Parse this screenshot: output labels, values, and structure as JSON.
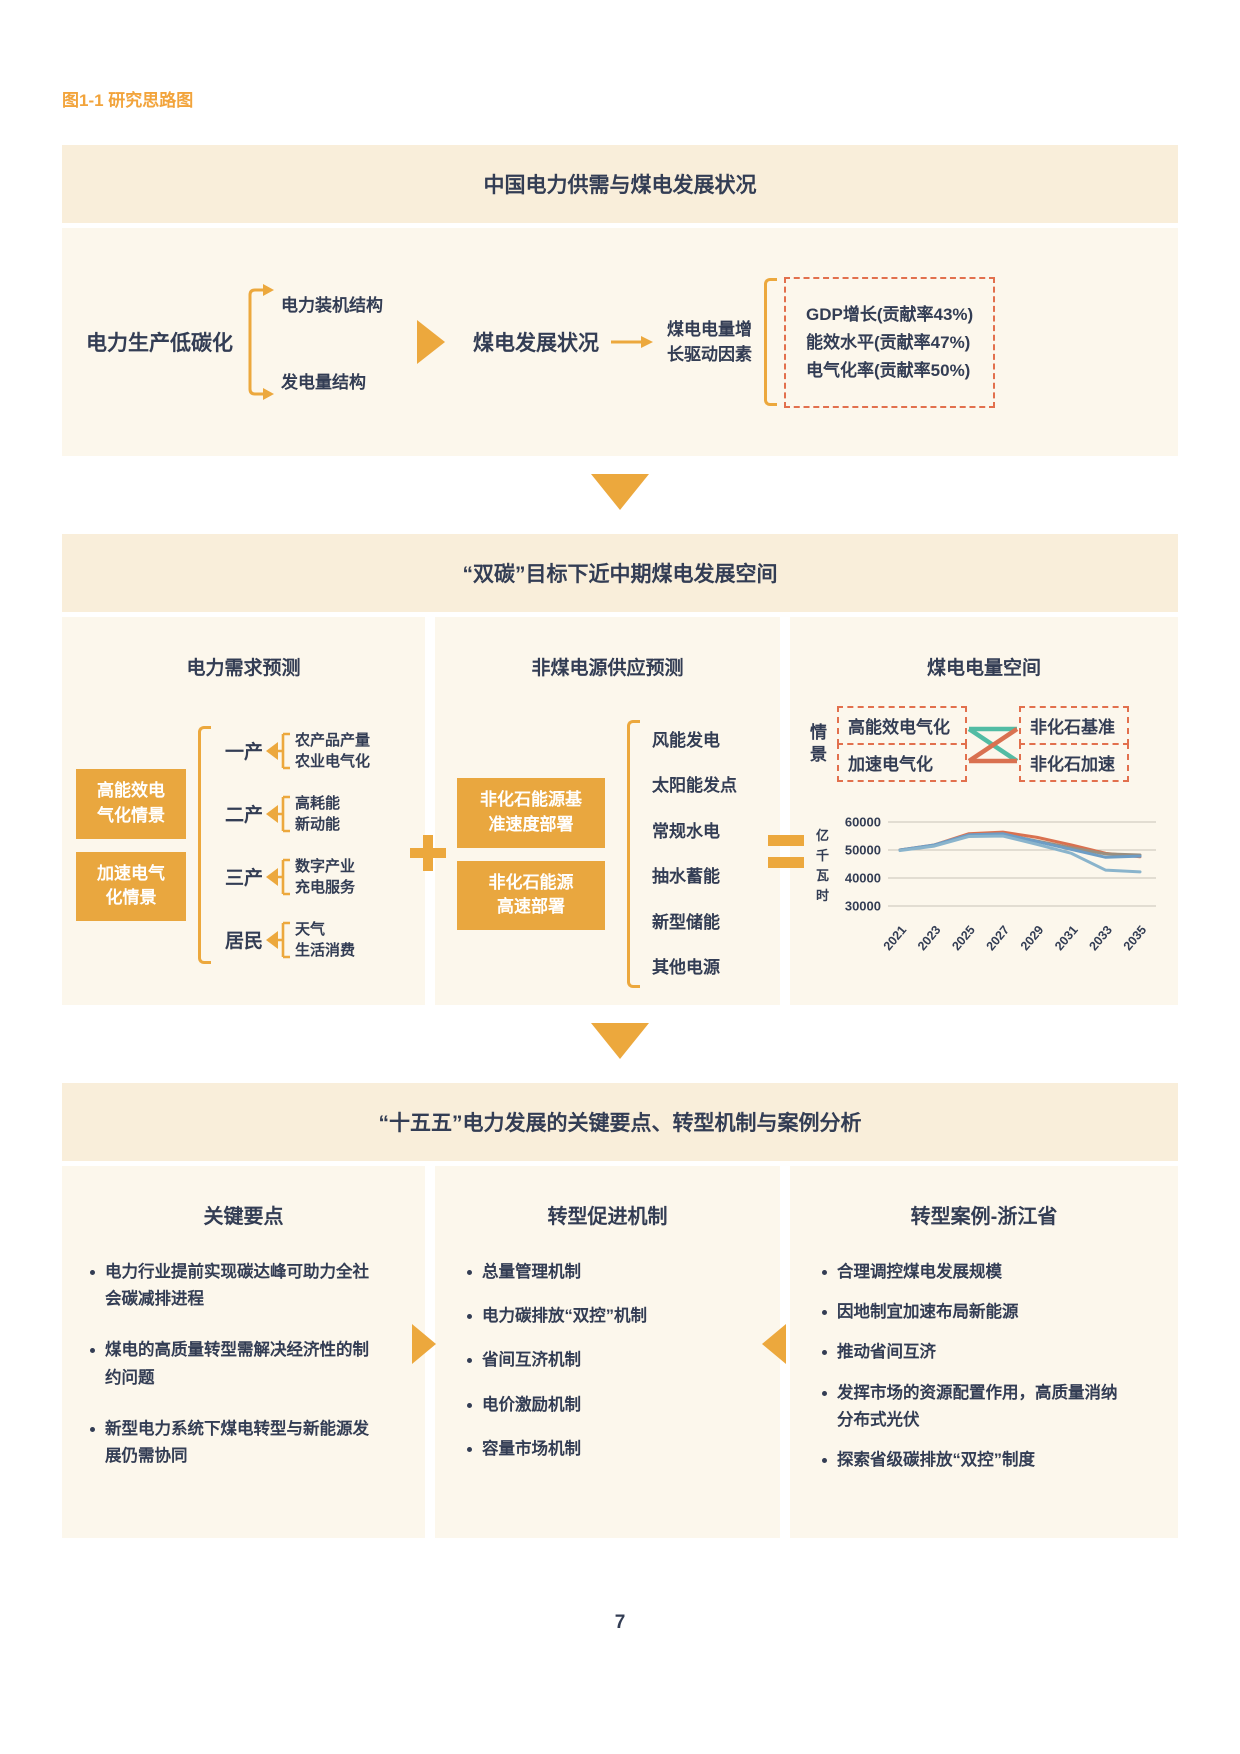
{
  "page": {
    "figure_label": "图1-1 研究思路图",
    "page_number": "7"
  },
  "colors": {
    "accent_orange": "#ECA83D",
    "text_navy": "#333D54",
    "dashed_red": "#E2704D",
    "legend_teal": "#52BCA4",
    "header_bg": "#F9EEDA",
    "body_bg": "#FCF7EC",
    "figure_label_orange": "#F2A43C"
  },
  "section1": {
    "header": "中国电力供需与煤电发展状况",
    "root": "电力生产低碳化",
    "branches": [
      "电力装机结构",
      "发电量结构"
    ],
    "mid": "煤电发展状况",
    "arrow_label": "煤电电量增\n长驱动因素",
    "drivers": [
      "GDP增长(贡献率43%)",
      "能效水平(贡献率47%)",
      "电气化率(贡献率50%)"
    ]
  },
  "section2": {
    "header": "“双碳”目标下近中期煤电发展空间",
    "demand": {
      "title": "电力需求预测",
      "scenarios": [
        "高能效电\n气化情景",
        "加速电气\n化情景"
      ],
      "sectors": [
        {
          "label": "一产",
          "detail": "农产品产量\n农业电气化"
        },
        {
          "label": "二产",
          "detail": "高耗能\n新动能"
        },
        {
          "label": "三产",
          "detail": "数字产业\n充电服务"
        },
        {
          "label": "居民",
          "detail": "天气\n生活消费"
        }
      ]
    },
    "supply": {
      "title": "非煤电源供应预测",
      "scenarios": [
        "非化石能源基\n准速度部署",
        "非化石能源\n高速部署"
      ],
      "sources": [
        "风能发电",
        "太阳能发点",
        "常规水电",
        "抽水蓄能",
        "新型储能",
        "其他电源"
      ]
    },
    "space": {
      "title": "煤电电量空间",
      "legend_label": "情景",
      "legend_left": [
        "高能效电气化",
        "加速电气化"
      ],
      "legend_right": [
        "非化石基准",
        "非化石加速"
      ]
    }
  },
  "chart_data": {
    "type": "line",
    "title": "煤电电量空间",
    "xlabel": "",
    "ylabel": "亿千瓦时",
    "x": [
      2021,
      2023,
      2025,
      2027,
      2029,
      2031,
      2033,
      2035
    ],
    "yticks": [
      60000,
      50000,
      40000,
      30000
    ],
    "ylim": [
      30000,
      60000
    ],
    "grid": "horizontal",
    "legend_position": "above",
    "series": [
      {
        "name": "高能效电气化-非化石基准",
        "color": "#D97150",
        "values": [
          50000,
          51800,
          55800,
          56400,
          54500,
          51800,
          48800,
          47600
        ]
      },
      {
        "name": "加速电气化-非化石基准",
        "color": "#9A8F80",
        "values": [
          50000,
          51600,
          55200,
          55600,
          53200,
          50800,
          48600,
          48200
        ]
      },
      {
        "name": "高能效电气化-非化石加速",
        "color": "#6D9DC5",
        "values": [
          50000,
          51800,
          55400,
          55800,
          53000,
          50200,
          47400,
          47800
        ]
      },
      {
        "name": "加速电气化-非化石加速",
        "color": "#8AB4CC",
        "values": [
          49800,
          51400,
          54800,
          55000,
          52000,
          48800,
          42800,
          42200
        ]
      }
    ]
  },
  "section3": {
    "header": "“十五五”电力发展的关键要点、转型机制与案例分析",
    "keypoints": {
      "title": "关键要点",
      "bullets": [
        "电力行业提前实现碳达峰可助力全社会碳减排进程",
        "煤电的高质量转型需解决经济性的制约问题",
        "新型电力系统下煤电转型与新能源发展仍需协同"
      ]
    },
    "mechanisms": {
      "title": "转型促进机制",
      "bullets": [
        "总量管理机制",
        "电力碳排放“双控”机制",
        "省间互济机制",
        "电价激励机制",
        "容量市场机制"
      ]
    },
    "casestudy": {
      "title": "转型案例-浙江省",
      "bullets": [
        "合理调控煤电发展规模",
        "因地制宜加速布局新能源",
        "推动省间互济",
        "发挥市场的资源配置作用，高质量消纳分布式光伏",
        "探索省级碳排放“双控”制度"
      ]
    }
  }
}
